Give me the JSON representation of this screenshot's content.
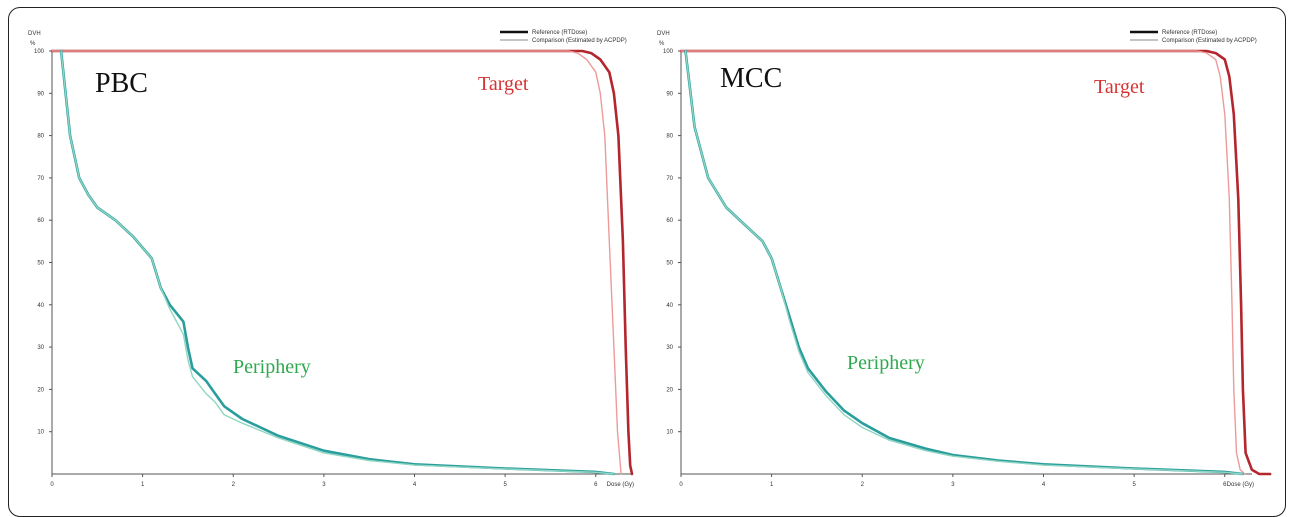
{
  "colors": {
    "target_reference": "#b3262d",
    "target_comparison": "#ec9a9a",
    "periphery_reference": "#2a9d9d",
    "periphery_comparison": "#8fd6c2",
    "target_label": "#d63333",
    "periphery_label": "#2fa84f"
  },
  "chart_data": [
    {
      "type": "line",
      "title": "PBC",
      "xlabel": "Dose (Gy)",
      "ylabel": "DVH",
      "yunit": "%",
      "xlim": [
        0,
        6.4
      ],
      "ylim": [
        0,
        100
      ],
      "xticks": [
        "0",
        "1",
        "2",
        "3",
        "4",
        "5",
        "6"
      ],
      "yticks": [
        "10",
        "20",
        "30",
        "40",
        "50",
        "60",
        "70",
        "80",
        "90",
        "100"
      ],
      "legend": [
        "Reference (RTDose)",
        "Comparison (Estimated by ACPDP)"
      ],
      "legend_position": "top-right",
      "annotations": [
        "Target",
        "Periphery"
      ],
      "series": [
        {
          "name": "Reference (RTDose)",
          "structure": "Target",
          "x": [
            0,
            5.0,
            5.85,
            5.95,
            6.05,
            6.15,
            6.2,
            6.25,
            6.3,
            6.33,
            6.36,
            6.38,
            6.4
          ],
          "y": [
            100,
            100,
            100,
            99.5,
            98,
            95,
            90,
            80,
            55,
            30,
            10,
            2,
            0
          ]
        },
        {
          "name": "Comparison (Estimated by ACPDP)",
          "structure": "Target",
          "x": [
            0,
            5.0,
            5.7,
            5.8,
            5.9,
            6.0,
            6.05,
            6.1,
            6.15,
            6.2,
            6.24,
            6.28
          ],
          "y": [
            100,
            100,
            100,
            99.5,
            98,
            95,
            90,
            80,
            55,
            30,
            10,
            0
          ]
        },
        {
          "name": "Reference (RTDose)",
          "structure": "Periphery",
          "x": [
            0.1,
            0.2,
            0.3,
            0.4,
            0.5,
            0.7,
            0.9,
            1.1,
            1.2,
            1.3,
            1.45,
            1.5,
            1.55,
            1.7,
            1.8,
            1.9,
            2.1,
            2.5,
            3.0,
            3.5,
            4.0,
            5.0,
            6.0,
            6.2
          ],
          "y": [
            100,
            80,
            70,
            66,
            63,
            60,
            56,
            51,
            44,
            40,
            36,
            30,
            25,
            22,
            19,
            16,
            13,
            9,
            5.5,
            3.5,
            2.3,
            1.3,
            0.5,
            0
          ],
          "smooth": false
        },
        {
          "name": "Comparison (Estimated by ACPDP)",
          "structure": "Periphery",
          "x": [
            0.1,
            0.2,
            0.3,
            0.4,
            0.5,
            0.7,
            0.9,
            1.1,
            1.2,
            1.3,
            1.45,
            1.5,
            1.55,
            1.7,
            1.8,
            1.9,
            2.1,
            2.5,
            3.0,
            3.5,
            4.0,
            5.0,
            6.0,
            6.2
          ],
          "y": [
            100,
            80,
            70,
            66,
            63,
            60,
            56,
            51,
            44,
            39,
            33,
            27,
            23,
            19,
            17,
            14,
            12,
            8.5,
            5,
            3.2,
            2.1,
            1.2,
            0.4,
            0
          ],
          "smooth": false
        }
      ]
    },
    {
      "type": "line",
      "title": "MCC",
      "xlabel": "Dose (Gy)",
      "ylabel": "DVH",
      "yunit": "%",
      "xlim": [
        0,
        6.4
      ],
      "ylim": [
        0,
        100
      ],
      "xticks": [
        "0",
        "1",
        "2",
        "3",
        "4",
        "5",
        "6"
      ],
      "yticks": [
        "10",
        "20",
        "30",
        "40",
        "50",
        "60",
        "70",
        "80",
        "90",
        "100"
      ],
      "legend": [
        "Reference (RTDose)",
        "Comparison (Estimated by ACPDP)"
      ],
      "legend_position": "top-right",
      "annotations": [
        "Target",
        "Periphery"
      ],
      "series": [
        {
          "name": "Reference (RTDose)",
          "structure": "Target",
          "x": [
            0,
            5.0,
            5.8,
            5.9,
            6.0,
            6.05,
            6.1,
            6.15,
            6.18,
            6.2,
            6.23,
            6.3,
            6.38,
            6.5
          ],
          "y": [
            100,
            100,
            100,
            99.5,
            98,
            94,
            85,
            65,
            40,
            20,
            5,
            1,
            0,
            0
          ],
          "smooth": true
        },
        {
          "name": "Comparison (Estimated by ACPDP)",
          "structure": "Target",
          "x": [
            0,
            5.0,
            5.7,
            5.8,
            5.9,
            5.95,
            6.0,
            6.05,
            6.08,
            6.1,
            6.13,
            6.17,
            6.22
          ],
          "y": [
            100,
            100,
            100,
            99.5,
            98,
            94,
            85,
            65,
            40,
            20,
            5,
            1,
            0
          ],
          "smooth": true
        },
        {
          "name": "Reference (RTDose)",
          "structure": "Periphery",
          "x": [
            0.05,
            0.15,
            0.3,
            0.5,
            0.7,
            0.9,
            1.0,
            1.1,
            1.2,
            1.3,
            1.4,
            1.6,
            1.8,
            2.0,
            2.3,
            2.7,
            3.0,
            3.5,
            4.0,
            5.0,
            6.0,
            6.2
          ],
          "y": [
            100,
            82,
            70,
            63,
            59,
            55,
            51,
            44,
            37,
            30,
            25,
            19.5,
            15,
            12,
            8.5,
            6,
            4.5,
            3.2,
            2.3,
            1.3,
            0.5,
            0
          ],
          "smooth": true
        },
        {
          "name": "Comparison (Estimated by ACPDP)",
          "structure": "Periphery",
          "x": [
            0.05,
            0.15,
            0.3,
            0.5,
            0.7,
            0.9,
            1.0,
            1.1,
            1.2,
            1.3,
            1.4,
            1.6,
            1.8,
            2.0,
            2.3,
            2.7,
            3.0,
            3.5,
            4.0,
            5.0,
            6.0,
            6.2
          ],
          "y": [
            100,
            82,
            70,
            63,
            59,
            55,
            51,
            44,
            36,
            29,
            24,
            18.5,
            14,
            11,
            8,
            5.5,
            4.2,
            3,
            2.1,
            1.2,
            0.4,
            0
          ],
          "smooth": true
        }
      ]
    }
  ]
}
